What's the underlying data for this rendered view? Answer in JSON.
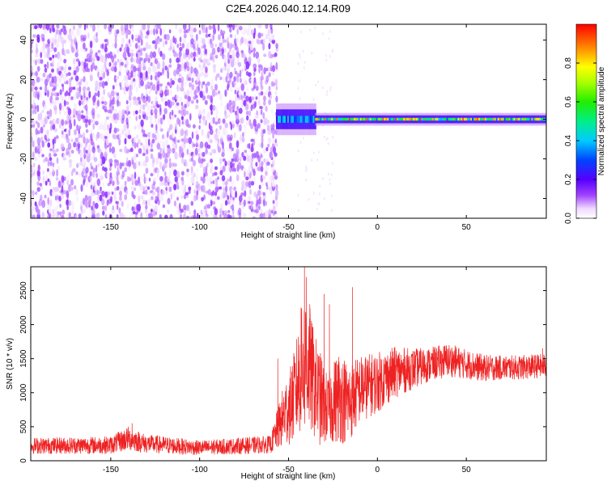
{
  "figure": {
    "title": "C2E4.2026.040.12.14.R09"
  },
  "chart_data": [
    {
      "type": "heatmap",
      "xlabel": "Height of straight line (km)",
      "ylabel": "Frequency (Hz)",
      "xlim": [
        -195,
        95
      ],
      "ylim": [
        -50,
        48
      ],
      "x_ticks": [
        -150,
        -100,
        -50,
        0,
        50
      ],
      "x_tick_labels": [
        "-150",
        "-100",
        "-50",
        "0",
        "50"
      ],
      "y_ticks": [
        -40,
        -20,
        0,
        20,
        40
      ],
      "y_tick_labels": [
        "-40",
        "-20",
        "0",
        "20",
        "40"
      ],
      "colorbar": {
        "label": "Normalized spectral amplitude",
        "range": [
          0,
          1
        ],
        "ticks": [
          0,
          0.2,
          0.4,
          0.6,
          0.8
        ],
        "tick_labels": [
          "0.0",
          "0.2",
          "0.4",
          "0.6",
          "0.8"
        ],
        "colormap": "rainbow (white→violet→blue→cyan→green→yellow→red)"
      },
      "regions": [
        {
          "x_range": [
            -195,
            -57
          ],
          "description": "broadband noise",
          "amplitude": [
            0.02,
            0.15
          ],
          "color": "#7b2ff0"
        },
        {
          "x_range": [
            -57,
            -35
          ],
          "center_freq": 0,
          "halfwidth_hz": 5,
          "amplitude": [
            0.2,
            0.45
          ]
        },
        {
          "x_range": [
            -35,
            95
          ],
          "center_freq": 0,
          "halfwidth_hz": 2,
          "amplitude": [
            0.3,
            0.95
          ]
        }
      ],
      "grid": false
    },
    {
      "type": "line",
      "xlabel": "Height of straight line (km)",
      "ylabel": "SNR (10 * v/v)",
      "xlim": [
        -195,
        95
      ],
      "ylim": [
        0,
        2850
      ],
      "x_ticks": [
        -150,
        -100,
        -50,
        0,
        50
      ],
      "x_tick_labels": [
        "-150",
        "-100",
        "-50",
        "0",
        "50"
      ],
      "y_ticks": [
        0,
        500,
        1000,
        1500,
        2000,
        2500
      ],
      "y_tick_labels": [
        "0",
        "500",
        "1000",
        "1500",
        "2000",
        "2500"
      ],
      "series_color": "#ee2222",
      "envelope": {
        "x": [
          -195,
          -150,
          -140,
          -130,
          -100,
          -60,
          -52,
          -48,
          -43,
          -40,
          -36,
          -32,
          -28,
          -22,
          -16,
          -10,
          0,
          10,
          20,
          30,
          40,
          50,
          60,
          70,
          80,
          95
        ],
        "mean": [
          220,
          230,
          330,
          250,
          190,
          240,
          700,
          850,
          1300,
          1500,
          1150,
          900,
          750,
          950,
          850,
          1050,
          1150,
          1300,
          1350,
          1420,
          1480,
          1420,
          1360,
          1370,
          1370,
          1400
        ],
        "spread": [
          120,
          130,
          180,
          140,
          110,
          130,
          500,
          600,
          900,
          1100,
          800,
          700,
          500,
          700,
          600,
          500,
          450,
          380,
          300,
          250,
          250,
          220,
          200,
          180,
          180,
          180
        ]
      },
      "spikes": [
        {
          "x": -41,
          "y": 2850
        },
        {
          "x": -40,
          "y": 2700
        },
        {
          "x": -38,
          "y": 2300
        },
        {
          "x": -30,
          "y": 2450
        },
        {
          "x": -27,
          "y": 2300
        },
        {
          "x": -14,
          "y": 2550
        },
        {
          "x": -43,
          "y": 2250
        },
        {
          "x": -56,
          "y": 1500
        },
        {
          "x": -138,
          "y": 550
        },
        {
          "x": 93,
          "y": 1650
        }
      ],
      "grid": false
    }
  ]
}
